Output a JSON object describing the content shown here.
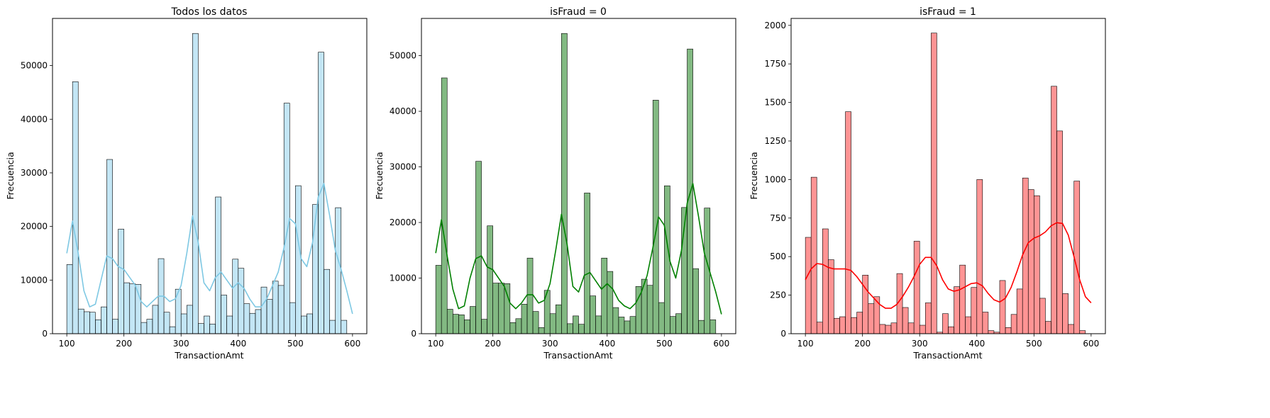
{
  "chart_data": [
    {
      "type": "bar",
      "title": "Todos los datos",
      "xlabel": "TransactionAmt",
      "ylabel": "Frecuencia",
      "xlim": [
        75,
        625
      ],
      "ylim": [
        0,
        58800
      ],
      "xticks": [
        100,
        200,
        300,
        400,
        500,
        600
      ],
      "yticks": [
        0,
        10000,
        20000,
        30000,
        40000,
        50000
      ],
      "ytick_labels": [
        "0",
        "10000",
        "20000",
        "30000",
        "40000",
        "50000"
      ],
      "bin_start": 100,
      "bin_width": 10,
      "values": [
        12900,
        47000,
        4600,
        4100,
        4000,
        2600,
        5000,
        32500,
        2700,
        19500,
        9500,
        9300,
        9200,
        2100,
        2700,
        5300,
        14000,
        4000,
        1300,
        8300,
        3700,
        5300,
        56000,
        1900,
        3300,
        1800,
        25500,
        7200,
        3300,
        13900,
        12200,
        5600,
        3800,
        4500,
        8700,
        6400,
        9800,
        9000,
        43000,
        5800,
        27600,
        3300,
        3700,
        24100,
        52500,
        12000,
        2500,
        23500,
        2500
      ],
      "kde": [
        [
          100,
          15000
        ],
        [
          110,
          21000
        ],
        [
          120,
          15000
        ],
        [
          130,
          8000
        ],
        [
          140,
          5000
        ],
        [
          150,
          5500
        ],
        [
          160,
          10000
        ],
        [
          170,
          14500
        ],
        [
          180,
          14000
        ],
        [
          190,
          12500
        ],
        [
          200,
          12000
        ],
        [
          210,
          10500
        ],
        [
          220,
          9000
        ],
        [
          230,
          6000
        ],
        [
          240,
          5000
        ],
        [
          250,
          6000
        ],
        [
          260,
          7000
        ],
        [
          270,
          7000
        ],
        [
          280,
          6000
        ],
        [
          290,
          6500
        ],
        [
          300,
          9000
        ],
        [
          310,
          15000
        ],
        [
          320,
          22000
        ],
        [
          330,
          17000
        ],
        [
          340,
          9500
        ],
        [
          350,
          8000
        ],
        [
          360,
          10500
        ],
        [
          370,
          11500
        ],
        [
          380,
          10000
        ],
        [
          390,
          8500
        ],
        [
          400,
          9500
        ],
        [
          410,
          8500
        ],
        [
          420,
          6500
        ],
        [
          430,
          5000
        ],
        [
          440,
          5000
        ],
        [
          450,
          6500
        ],
        [
          460,
          9000
        ],
        [
          470,
          11500
        ],
        [
          480,
          16000
        ],
        [
          490,
          21500
        ],
        [
          500,
          20500
        ],
        [
          510,
          14000
        ],
        [
          520,
          12500
        ],
        [
          530,
          17000
        ],
        [
          540,
          25500
        ],
        [
          550,
          28000
        ],
        [
          560,
          22000
        ],
        [
          570,
          15500
        ],
        [
          580,
          12000
        ],
        [
          590,
          8000
        ],
        [
          600,
          3700
        ]
      ],
      "bar_color": "#87ceeb",
      "line_color": "#7ec8e3"
    },
    {
      "type": "bar",
      "title": "isFraud = 0",
      "xlabel": "TransactionAmt",
      "ylabel": "Frecuencia",
      "xlim": [
        75,
        625
      ],
      "ylim": [
        0,
        56700
      ],
      "xticks": [
        100,
        200,
        300,
        400,
        500,
        600
      ],
      "yticks": [
        0,
        10000,
        20000,
        30000,
        40000,
        50000
      ],
      "ytick_labels": [
        "0",
        "10000",
        "20000",
        "30000",
        "40000",
        "50000"
      ],
      "bin_start": 100,
      "bin_width": 10,
      "values": [
        12300,
        46000,
        4400,
        3500,
        3400,
        2500,
        4900,
        31000,
        2600,
        19400,
        9100,
        9100,
        9000,
        2000,
        2700,
        5300,
        13600,
        4000,
        1100,
        7800,
        3600,
        5200,
        54000,
        1800,
        3200,
        1700,
        25300,
        6800,
        3200,
        13600,
        11200,
        4700,
        3000,
        2300,
        3100,
        8500,
        9800,
        8700,
        42000,
        5600,
        26600,
        3100,
        3600,
        22700,
        51200,
        11700,
        2400,
        22600,
        2500
      ],
      "kde": [
        [
          100,
          14500
        ],
        [
          110,
          20500
        ],
        [
          120,
          14000
        ],
        [
          130,
          8000
        ],
        [
          140,
          4500
        ],
        [
          150,
          5000
        ],
        [
          160,
          10000
        ],
        [
          170,
          13500
        ],
        [
          180,
          14000
        ],
        [
          190,
          12000
        ],
        [
          200,
          11500
        ],
        [
          210,
          10000
        ],
        [
          220,
          8500
        ],
        [
          230,
          5500
        ],
        [
          240,
          4500
        ],
        [
          250,
          5500
        ],
        [
          260,
          7000
        ],
        [
          270,
          7000
        ],
        [
          280,
          5500
        ],
        [
          290,
          6000
        ],
        [
          300,
          9000
        ],
        [
          310,
          15000
        ],
        [
          320,
          21500
        ],
        [
          330,
          16000
        ],
        [
          340,
          8500
        ],
        [
          350,
          7500
        ],
        [
          360,
          10500
        ],
        [
          370,
          11000
        ],
        [
          380,
          9500
        ],
        [
          390,
          8000
        ],
        [
          400,
          9000
        ],
        [
          410,
          8000
        ],
        [
          420,
          6000
        ],
        [
          430,
          5000
        ],
        [
          440,
          4500
        ],
        [
          450,
          5500
        ],
        [
          460,
          7500
        ],
        [
          470,
          10500
        ],
        [
          480,
          15500
        ],
        [
          490,
          21000
        ],
        [
          500,
          19500
        ],
        [
          510,
          13000
        ],
        [
          520,
          10000
        ],
        [
          530,
          15000
        ],
        [
          540,
          23500
        ],
        [
          550,
          27000
        ],
        [
          560,
          21000
        ],
        [
          570,
          14500
        ],
        [
          580,
          11000
        ],
        [
          590,
          7500
        ],
        [
          600,
          3500
        ]
      ],
      "bar_color": "#2e8b2e",
      "line_color": "#008000"
    },
    {
      "type": "bar",
      "title": "isFraud = 1",
      "xlabel": "TransactionAmt",
      "ylabel": "Frecuencia",
      "xlim": [
        75,
        625
      ],
      "ylim": [
        0,
        2045
      ],
      "xticks": [
        100,
        200,
        300,
        400,
        500,
        600
      ],
      "yticks": [
        0,
        250,
        500,
        750,
        1000,
        1250,
        1500,
        1750,
        2000
      ],
      "ytick_labels": [
        "0",
        "250",
        "500",
        "750",
        "1000",
        "1250",
        "1500",
        "1750",
        "2000"
      ],
      "bin_start": 100,
      "bin_width": 10,
      "values": [
        625,
        1015,
        75,
        680,
        480,
        100,
        110,
        1440,
        105,
        140,
        380,
        195,
        240,
        60,
        55,
        70,
        390,
        170,
        70,
        600,
        55,
        200,
        1950,
        10,
        130,
        45,
        305,
        445,
        110,
        300,
        1000,
        140,
        20,
        10,
        345,
        40,
        125,
        290,
        1010,
        935,
        895,
        230,
        80,
        1605,
        1315,
        260,
        60,
        990,
        20
      ],
      "kde": [
        [
          100,
          350
        ],
        [
          110,
          420
        ],
        [
          120,
          455
        ],
        [
          130,
          450
        ],
        [
          140,
          430
        ],
        [
          150,
          420
        ],
        [
          160,
          420
        ],
        [
          170,
          420
        ],
        [
          180,
          410
        ],
        [
          190,
          370
        ],
        [
          200,
          320
        ],
        [
          210,
          270
        ],
        [
          220,
          230
        ],
        [
          230,
          190
        ],
        [
          240,
          165
        ],
        [
          250,
          165
        ],
        [
          260,
          190
        ],
        [
          270,
          240
        ],
        [
          280,
          300
        ],
        [
          290,
          370
        ],
        [
          300,
          450
        ],
        [
          310,
          495
        ],
        [
          320,
          495
        ],
        [
          330,
          440
        ],
        [
          340,
          350
        ],
        [
          350,
          290
        ],
        [
          360,
          275
        ],
        [
          370,
          285
        ],
        [
          380,
          305
        ],
        [
          390,
          325
        ],
        [
          400,
          330
        ],
        [
          410,
          310
        ],
        [
          420,
          260
        ],
        [
          430,
          220
        ],
        [
          440,
          205
        ],
        [
          450,
          230
        ],
        [
          460,
          300
        ],
        [
          470,
          400
        ],
        [
          480,
          510
        ],
        [
          490,
          590
        ],
        [
          500,
          620
        ],
        [
          510,
          635
        ],
        [
          520,
          660
        ],
        [
          530,
          700
        ],
        [
          540,
          720
        ],
        [
          550,
          715
        ],
        [
          560,
          640
        ],
        [
          570,
          500
        ],
        [
          580,
          350
        ],
        [
          590,
          240
        ],
        [
          600,
          200
        ]
      ],
      "bar_color": "#ff4d4d",
      "line_color": "#ff0000"
    }
  ]
}
